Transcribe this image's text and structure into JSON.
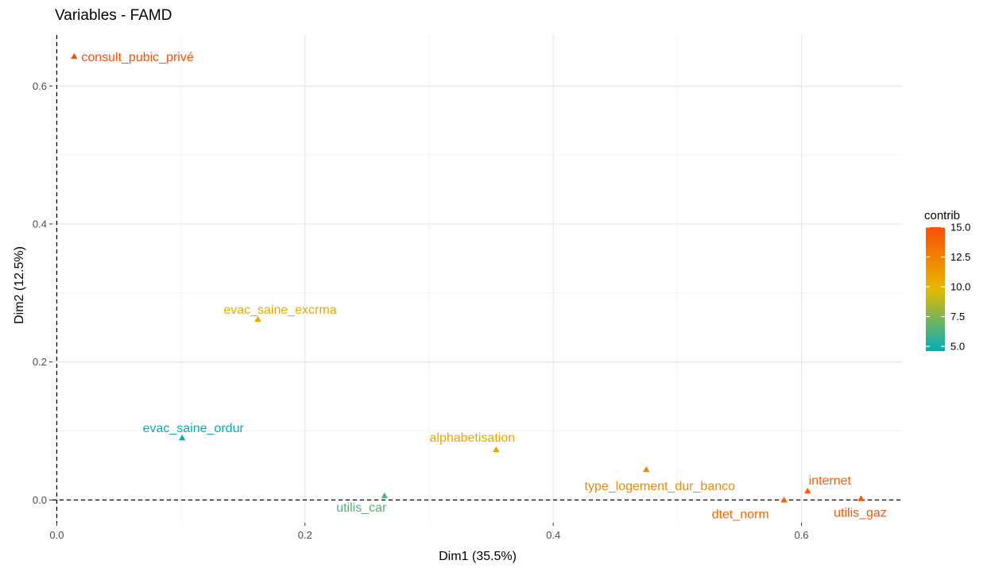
{
  "chart_data": {
    "type": "scatter",
    "title": "Variables - FAMD",
    "xlabel": "Dim1 (35.5%)",
    "ylabel": "Dim2 (12.5%)",
    "xlim": [
      -0.0035,
      0.681
    ],
    "ylim": [
      -0.033,
      0.674
    ],
    "xticks": [
      0.0,
      0.2,
      0.4,
      0.6
    ],
    "xtick_labels": [
      "0.0",
      "0.2",
      "0.4",
      "0.6"
    ],
    "yticks": [
      0.0,
      0.2,
      0.4,
      0.6
    ],
    "ytick_labels": [
      "0.0",
      "0.2",
      "0.4",
      "0.6"
    ],
    "grid": true,
    "reference_lines": {
      "x": 0,
      "y": 0
    },
    "points": [
      {
        "label": "consult_pubic_privé",
        "x": 0.014,
        "y": 0.643,
        "contrib": 15.0
      },
      {
        "label": "evac_saine_excrma",
        "x": 0.162,
        "y": 0.262,
        "contrib": 10.5
      },
      {
        "label": "evac_saine_ordur",
        "x": 0.101,
        "y": 0.09,
        "contrib": 4.6
      },
      {
        "label": "alphabetisation",
        "x": 0.354,
        "y": 0.073,
        "contrib": 10.8
      },
      {
        "label": "type_logement_dur_banco",
        "x": 0.475,
        "y": 0.044,
        "contrib": 12.2
      },
      {
        "label": "utilis_car",
        "x": 0.264,
        "y": 0.006,
        "contrib": 6.5
      },
      {
        "label": "dtet_norm",
        "x": 0.586,
        "y": 0.0,
        "contrib": 13.8
      },
      {
        "label": "internet",
        "x": 0.605,
        "y": 0.013,
        "contrib": 14.2
      },
      {
        "label": "utilis_gaz",
        "x": 0.648,
        "y": 0.002,
        "contrib": 14.6
      }
    ],
    "legend": {
      "title": "contrib",
      "placement": "right",
      "ticks": [
        5.0,
        7.5,
        10.0,
        12.5,
        15.0
      ],
      "tick_labels": [
        "5.0",
        "7.5",
        "10.0",
        "12.5",
        "15.0"
      ],
      "range": [
        4.6,
        15.0
      ],
      "gradient": [
        {
          "value": 4.6,
          "color": "#00AFBB"
        },
        {
          "value": 9.8,
          "color": "#E7B800"
        },
        {
          "value": 15.0,
          "color": "#FC4E07"
        }
      ]
    }
  }
}
